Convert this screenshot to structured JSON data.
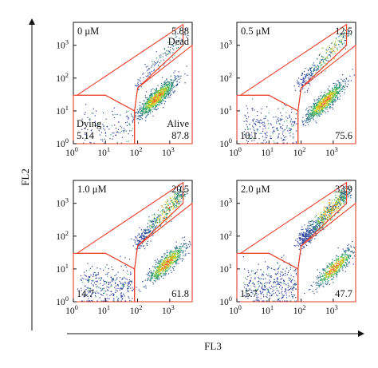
{
  "chart_data": {
    "type": "scatter",
    "xlabel": "FL3",
    "ylabel": "FL2",
    "xscale": "log",
    "yscale": "log",
    "xlim": [
      1,
      5000
    ],
    "ylim": [
      1,
      5000
    ],
    "x_ticks": [
      {
        "base": "10",
        "exp": "0"
      },
      {
        "base": "10",
        "exp": "1"
      },
      {
        "base": "10",
        "exp": "2"
      },
      {
        "base": "10",
        "exp": "3"
      }
    ],
    "y_ticks": [
      {
        "base": "10",
        "exp": "0"
      },
      {
        "base": "10",
        "exp": "1"
      },
      {
        "base": "10",
        "exp": "2"
      },
      {
        "base": "10",
        "exp": "3"
      }
    ],
    "panels": [
      {
        "concentration": "0 μM",
        "dead": "5.88",
        "dying": "5.14",
        "alive": "87.8",
        "dead_label": "Dead",
        "dying_label": "Dying",
        "alive_label": "Alive",
        "gate_dead": [
          [
            1.3,
            30
          ],
          [
            10,
            30
          ],
          [
            80,
            10
          ],
          [
            100,
            50
          ],
          [
            2600,
            1000
          ],
          [
            2600,
            4300
          ]
        ],
        "gate_dying": [
          [
            1,
            1
          ],
          [
            80,
            1
          ],
          [
            80,
            10
          ],
          [
            10,
            30
          ],
          [
            1,
            30
          ]
        ],
        "gate_alive": [
          [
            80,
            1
          ],
          [
            5000,
            1
          ],
          [
            5000,
            1000
          ],
          [
            100,
            50
          ],
          [
            80,
            10
          ]
        ]
      },
      {
        "concentration": "0.5 μM",
        "dead": "12.5",
        "dying": "10.1",
        "alive": "75.6",
        "dead_label": "",
        "dying_label": "",
        "alive_label": "",
        "gate_dead": [
          [
            1.3,
            30
          ],
          [
            10,
            30
          ],
          [
            80,
            10
          ],
          [
            100,
            50
          ],
          [
            2600,
            1000
          ],
          [
            2600,
            4300
          ]
        ],
        "gate_dying": [
          [
            1,
            1
          ],
          [
            80,
            1
          ],
          [
            80,
            10
          ],
          [
            10,
            30
          ],
          [
            1,
            30
          ]
        ],
        "gate_alive": [
          [
            80,
            1
          ],
          [
            5000,
            1
          ],
          [
            5000,
            1000
          ],
          [
            100,
            50
          ],
          [
            80,
            10
          ]
        ]
      },
      {
        "concentration": "1.0 μM",
        "dead": "20.5",
        "dying": "14.7",
        "alive": "61.8",
        "dead_label": "",
        "dying_label": "",
        "alive_label": "",
        "gate_dead": [
          [
            1.3,
            30
          ],
          [
            10,
            30
          ],
          [
            80,
            10
          ],
          [
            100,
            50
          ],
          [
            2600,
            1000
          ],
          [
            2600,
            4300
          ]
        ],
        "gate_dying": [
          [
            1,
            1
          ],
          [
            80,
            1
          ],
          [
            80,
            10
          ],
          [
            10,
            30
          ],
          [
            1,
            30
          ]
        ],
        "gate_alive": [
          [
            80,
            1
          ],
          [
            5000,
            1
          ],
          [
            5000,
            1000
          ],
          [
            100,
            50
          ],
          [
            80,
            10
          ]
        ]
      },
      {
        "concentration": "2.0 μM",
        "dead": "33.9",
        "dying": "15.7",
        "alive": "47.7",
        "dead_label": "",
        "dying_label": "",
        "alive_label": "",
        "gate_dead": [
          [
            1.3,
            30
          ],
          [
            10,
            30
          ],
          [
            80,
            10
          ],
          [
            100,
            50
          ],
          [
            2600,
            1000
          ],
          [
            2600,
            4300
          ]
        ],
        "gate_dying": [
          [
            1,
            1
          ],
          [
            80,
            1
          ],
          [
            80,
            10
          ],
          [
            10,
            30
          ],
          [
            1,
            30
          ]
        ],
        "gate_alive": [
          [
            80,
            1
          ],
          [
            5000,
            1
          ],
          [
            5000,
            1000
          ],
          [
            100,
            50
          ],
          [
            80,
            10
          ]
        ]
      }
    ]
  },
  "colors": {
    "gate": "#e8402a",
    "axis": "#111111",
    "density_low": "#2b3f9e",
    "density_mid": "#2fae6a",
    "density_high": "#f6e11a",
    "density_peak": "#e8402a"
  }
}
